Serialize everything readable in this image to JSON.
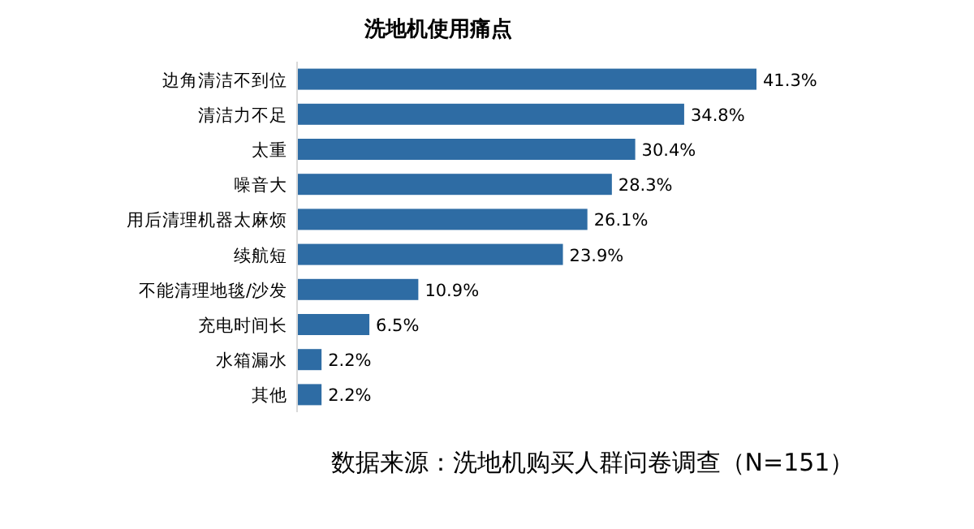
{
  "chart_data": {
    "type": "bar",
    "orientation": "horizontal",
    "title": "洗地机使用痛点",
    "categories": [
      "边角清洁不到位",
      "清洁力不足",
      "太重",
      "噪音大",
      "用后清理机器太麻烦",
      "续航短",
      "不能清理地毯/沙发",
      "充电时间长",
      "水箱漏水",
      "其他"
    ],
    "values": [
      41.3,
      34.8,
      30.4,
      28.3,
      26.1,
      23.9,
      10.9,
      6.5,
      2.2,
      2.2
    ],
    "value_labels": [
      "41.3%",
      "34.8%",
      "30.4%",
      "28.3%",
      "26.1%",
      "23.9%",
      "10.9%",
      "6.5%",
      "2.2%",
      "2.2%"
    ],
    "color": "#2e6ca4",
    "xlim": [
      0,
      41.3
    ],
    "tick_labels": "y",
    "annotations": [
      "数据来源：洗地机购买人群问卷调查（N=151）"
    ]
  }
}
